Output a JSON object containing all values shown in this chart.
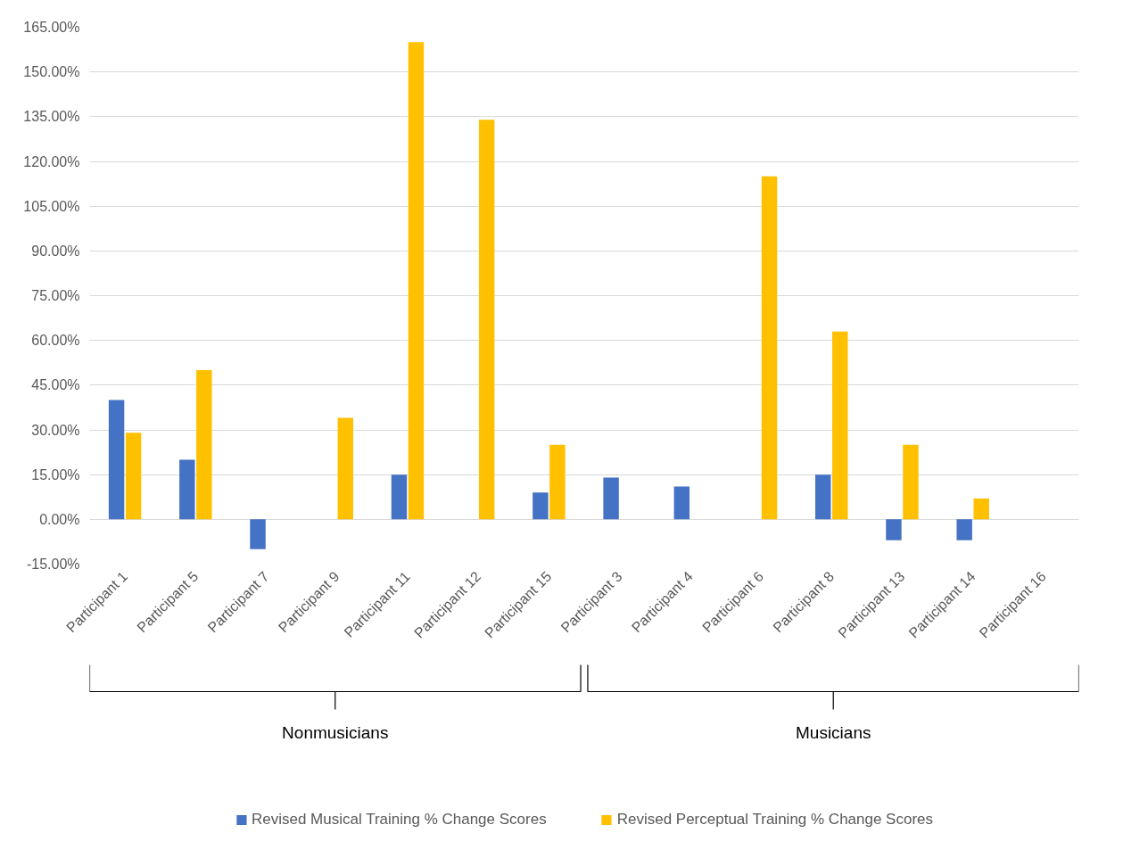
{
  "chart_data": {
    "type": "bar",
    "categories": [
      "Participant 1",
      "Participant 5",
      "Participant 7",
      "Participant 9",
      "Participant 11",
      "Participant 12",
      "Participant 15",
      "Participant 3",
      "Participant 4",
      "Participant 6",
      "Participant 8",
      "Participant 13",
      "Participant 14",
      "Participant 16"
    ],
    "series": [
      {
        "name": "Revised Musical Training % Change Scores",
        "color": "#4472c4",
        "values": [
          40,
          20,
          -10,
          0,
          15,
          0,
          9,
          14,
          11,
          0,
          15,
          -7,
          -7,
          0
        ]
      },
      {
        "name": "Revised Perceptual Training % Change Scores",
        "color": "#ffc000",
        "values": [
          29,
          50,
          0,
          34,
          160,
          134,
          25,
          0,
          0,
          115,
          63,
          25,
          7,
          0
        ]
      }
    ],
    "ylim": [
      -15,
      165
    ],
    "yticks": [
      {
        "value": -15,
        "label": "-15.00%"
      },
      {
        "value": 0,
        "label": "0.00%"
      },
      {
        "value": 15,
        "label": "15.00%"
      },
      {
        "value": 30,
        "label": "30.00%"
      },
      {
        "value": 45,
        "label": "45.00%"
      },
      {
        "value": 60,
        "label": "60.00%"
      },
      {
        "value": 75,
        "label": "75.00%"
      },
      {
        "value": 90,
        "label": "90.00%"
      },
      {
        "value": 105,
        "label": "105.00%"
      },
      {
        "value": 120,
        "label": "120.00%"
      },
      {
        "value": 135,
        "label": "135.00%"
      },
      {
        "value": 150,
        "label": "150.00%"
      },
      {
        "value": 165,
        "label": "165.00%"
      }
    ],
    "annotations": [
      "Nonmusicians",
      "Musicians"
    ],
    "grid": "y",
    "legend": "bottom"
  }
}
